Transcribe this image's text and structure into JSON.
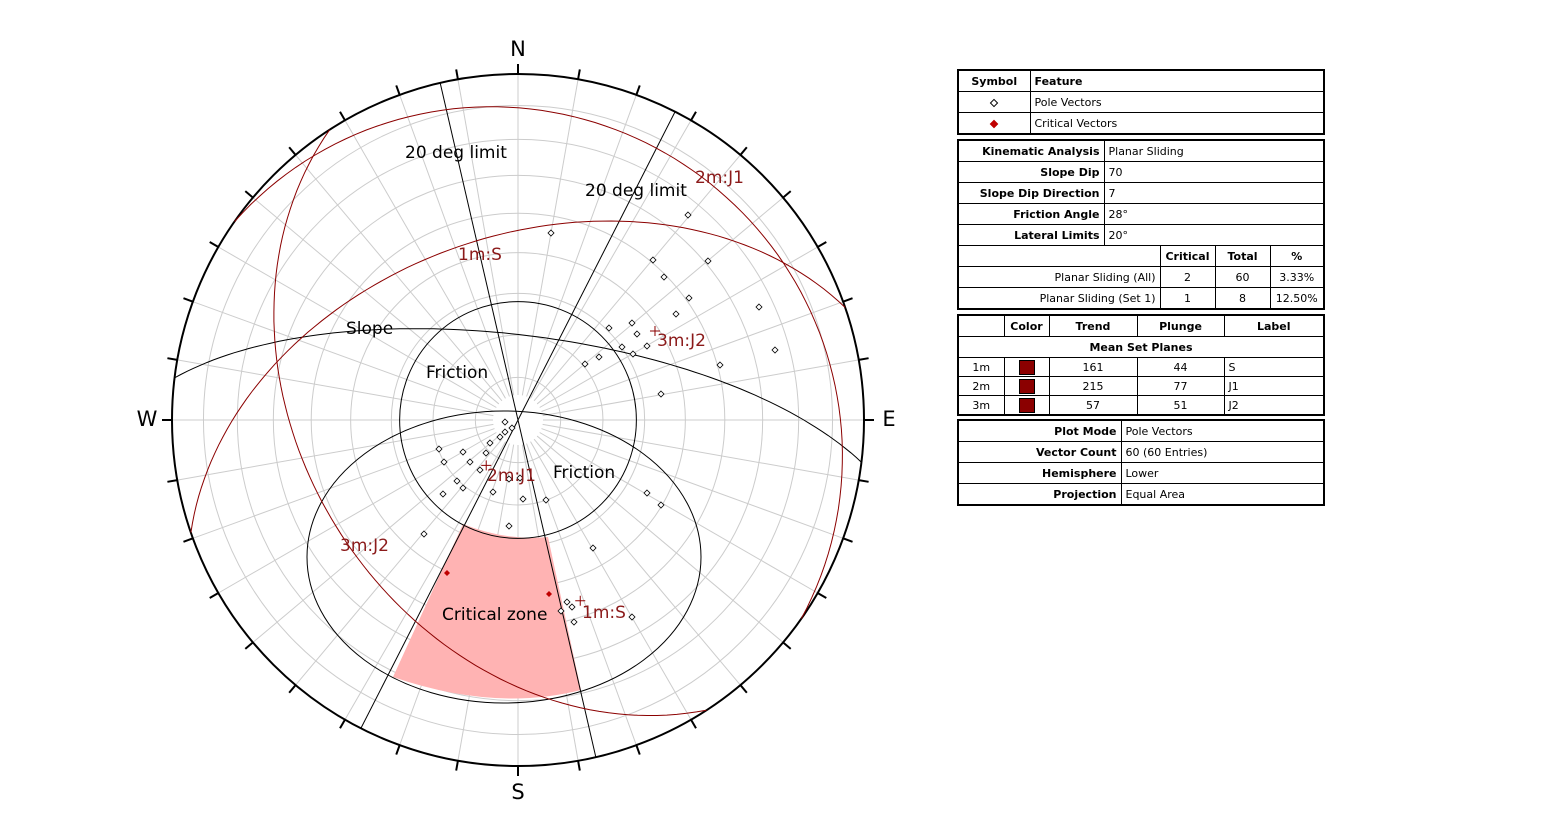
{
  "stereonet": {
    "directions": {
      "n": "N",
      "e": "E",
      "s": "S",
      "w": "W"
    },
    "labels": {
      "limit_left": "20 deg limit",
      "limit_right": "20 deg limit",
      "slope": "Slope",
      "friction_inner": "Friction",
      "friction_outer": "Friction",
      "critical_zone": "Critical zone",
      "plane_1m": "1m:S",
      "plane_2m": "2m:J1",
      "plane_3m": "3m:J2",
      "pole_1m": "1m:S",
      "pole_2m": "2m:J1",
      "pole_3m": "3m:J2"
    }
  },
  "legend": {
    "headers": [
      "Symbol",
      "Feature"
    ],
    "rows": [
      "Pole Vectors",
      "Critical Vectors"
    ]
  },
  "kinematic": {
    "rows": [
      [
        "Kinematic Analysis",
        "Planar Sliding"
      ],
      [
        "Slope Dip",
        "70"
      ],
      [
        "Slope Dip Direction",
        "7"
      ],
      [
        "Friction Angle",
        "28°"
      ],
      [
        "Lateral Limits",
        "20°"
      ]
    ]
  },
  "results": {
    "headers": [
      "Critical",
      "Total",
      "%"
    ],
    "rows": [
      [
        "Planar Sliding (All)",
        "2",
        "60",
        "3.33%"
      ],
      [
        "Planar Sliding (Set 1)",
        "1",
        "8",
        "12.50%"
      ]
    ]
  },
  "mean_planes": {
    "headers": [
      "Color",
      "Trend",
      "Plunge",
      "Label"
    ],
    "section": "Mean Set Planes",
    "rows": [
      {
        "id": "1m",
        "color": "#8b0000",
        "trend": 161,
        "plunge": 44,
        "label": "S"
      },
      {
        "id": "2m",
        "color": "#8b0000",
        "trend": 215,
        "plunge": 77,
        "label": "J1"
      },
      {
        "id": "3m",
        "color": "#8b0000",
        "trend": 57,
        "plunge": 51,
        "label": "J2"
      }
    ]
  },
  "plot": {
    "rows": [
      [
        "Plot Mode",
        "Pole Vectors"
      ],
      [
        "Vector Count",
        "60 (60 Entries)"
      ],
      [
        "Hemisphere",
        "Lower"
      ],
      [
        "Projection",
        "Equal Area"
      ]
    ]
  }
}
